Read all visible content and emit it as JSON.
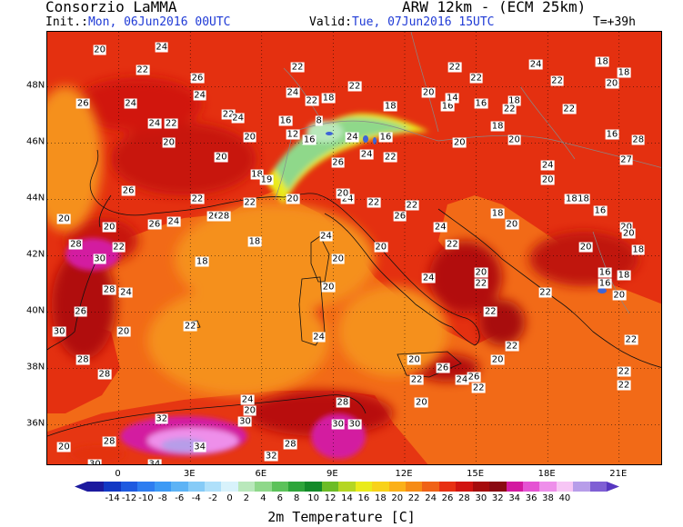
{
  "header": {
    "organization": "Consorzio LaMMA",
    "model": "ARW 12km - (ECM 25km)",
    "init_label": "Init.:",
    "init_value": "Mon, 06Jun2016 00UTC",
    "valid_label": "Valid:",
    "valid_value": "Tue, 07Jun2016 15UTC",
    "timestep": "T=+39h"
  },
  "map": {
    "latitude_labels": [
      "48N",
      "46N",
      "44N",
      "42N",
      "40N",
      "38N",
      "36N"
    ],
    "longitude_labels": [
      "0",
      "3E",
      "6E",
      "9E",
      "12E",
      "15E",
      "18E",
      "21E"
    ],
    "station_values": [
      {
        "v": "20",
        "lon": -0.8,
        "lat": 49.3
      },
      {
        "v": "24",
        "lon": 1.8,
        "lat": 49.4
      },
      {
        "v": "22",
        "lon": 1.0,
        "lat": 48.6
      },
      {
        "v": "26",
        "lon": 3.3,
        "lat": 48.3
      },
      {
        "v": "24",
        "lon": 3.4,
        "lat": 47.7
      },
      {
        "v": "26",
        "lon": -1.5,
        "lat": 47.4
      },
      {
        "v": "24",
        "lon": 0.5,
        "lat": 47.4
      },
      {
        "v": "22",
        "lon": 4.6,
        "lat": 47.0
      },
      {
        "v": "24",
        "lon": 5.0,
        "lat": 46.9
      },
      {
        "v": "24",
        "lon": 1.5,
        "lat": 46.7
      },
      {
        "v": "22",
        "lon": 2.2,
        "lat": 46.7
      },
      {
        "v": "20",
        "lon": 2.1,
        "lat": 46.0
      },
      {
        "v": "20",
        "lon": 5.5,
        "lat": 46.2
      },
      {
        "v": "20",
        "lon": 4.3,
        "lat": 45.5
      },
      {
        "v": "18",
        "lon": 5.8,
        "lat": 44.9
      },
      {
        "v": "19",
        "lon": 6.2,
        "lat": 44.7
      },
      {
        "v": "26",
        "lon": 0.4,
        "lat": 44.3
      },
      {
        "v": "22",
        "lon": 3.3,
        "lat": 44.0
      },
      {
        "v": "22",
        "lon": 5.5,
        "lat": 43.9
      },
      {
        "v": "20",
        "lon": 7.3,
        "lat": 44.0
      },
      {
        "v": "24",
        "lon": 9.6,
        "lat": 44.0
      },
      {
        "v": "20",
        "lon": -2.3,
        "lat": 43.3
      },
      {
        "v": "20",
        "lon": -0.4,
        "lat": 43.0
      },
      {
        "v": "26",
        "lon": 1.5,
        "lat": 43.1
      },
      {
        "v": "24",
        "lon": 2.3,
        "lat": 43.2
      },
      {
        "v": "26",
        "lon": 4.0,
        "lat": 43.4
      },
      {
        "v": "28",
        "lon": 4.4,
        "lat": 43.4
      },
      {
        "v": "18",
        "lon": 5.7,
        "lat": 42.5
      },
      {
        "v": "28",
        "lon": -1.8,
        "lat": 42.4
      },
      {
        "v": "22",
        "lon": 0.0,
        "lat": 42.3
      },
      {
        "v": "30",
        "lon": -0.8,
        "lat": 41.9
      },
      {
        "v": "18",
        "lon": 3.5,
        "lat": 41.8
      },
      {
        "v": "28",
        "lon": -0.4,
        "lat": 40.8
      },
      {
        "v": "24",
        "lon": 0.3,
        "lat": 40.7
      },
      {
        "v": "26",
        "lon": -1.6,
        "lat": 40.0
      },
      {
        "v": "22",
        "lon": 3.0,
        "lat": 39.5
      },
      {
        "v": "20",
        "lon": 0.2,
        "lat": 39.3
      },
      {
        "v": "30",
        "lon": -2.5,
        "lat": 39.3
      },
      {
        "v": "28",
        "lon": -1.5,
        "lat": 38.3
      },
      {
        "v": "28",
        "lon": -0.6,
        "lat": 37.8
      },
      {
        "v": "24",
        "lon": 5.4,
        "lat": 36.9
      },
      {
        "v": "20",
        "lon": 5.5,
        "lat": 36.5
      },
      {
        "v": "30",
        "lon": 5.3,
        "lat": 36.1
      },
      {
        "v": "32",
        "lon": 1.8,
        "lat": 36.2
      },
      {
        "v": "34",
        "lon": 3.4,
        "lat": 35.2
      },
      {
        "v": "28",
        "lon": -0.4,
        "lat": 35.4
      },
      {
        "v": "20",
        "lon": -2.3,
        "lat": 35.2
      },
      {
        "v": "30",
        "lon": -1.0,
        "lat": 34.6
      },
      {
        "v": "34",
        "lon": 1.5,
        "lat": 34.6
      },
      {
        "v": "32",
        "lon": 6.4,
        "lat": 34.9
      },
      {
        "v": "28",
        "lon": 7.2,
        "lat": 35.3
      },
      {
        "v": "30",
        "lon": 9.2,
        "lat": 36.0
      },
      {
        "v": "30",
        "lon": 9.9,
        "lat": 36.0
      },
      {
        "v": "28",
        "lon": 9.4,
        "lat": 36.8
      },
      {
        "v": "22",
        "lon": 7.5,
        "lat": 48.7
      },
      {
        "v": "22",
        "lon": 9.9,
        "lat": 48.0
      },
      {
        "v": "24",
        "lon": 7.3,
        "lat": 47.8
      },
      {
        "v": "22",
        "lon": 8.1,
        "lat": 47.5
      },
      {
        "v": "18",
        "lon": 8.8,
        "lat": 47.6
      },
      {
        "v": "16",
        "lon": 7.0,
        "lat": 46.8
      },
      {
        "v": "12",
        "lon": 7.3,
        "lat": 46.3
      },
      {
        "v": "16",
        "lon": 8.0,
        "lat": 46.1
      },
      {
        "v": "8",
        "lon": 8.4,
        "lat": 46.8
      },
      {
        "v": "24",
        "lon": 9.8,
        "lat": 46.2
      },
      {
        "v": "26",
        "lon": 9.2,
        "lat": 45.3
      },
      {
        "v": "24",
        "lon": 10.4,
        "lat": 45.6
      },
      {
        "v": "18",
        "lon": 11.4,
        "lat": 47.3
      },
      {
        "v": "16",
        "lon": 11.2,
        "lat": 46.2
      },
      {
        "v": "22",
        "lon": 11.4,
        "lat": 45.5
      },
      {
        "v": "20",
        "lon": 9.4,
        "lat": 44.2
      },
      {
        "v": "22",
        "lon": 10.7,
        "lat": 43.9
      },
      {
        "v": "24",
        "lon": 8.7,
        "lat": 42.7
      },
      {
        "v": "26",
        "lon": 11.8,
        "lat": 43.4
      },
      {
        "v": "20",
        "lon": 11.0,
        "lat": 42.3
      },
      {
        "v": "20",
        "lon": 9.2,
        "lat": 41.9
      },
      {
        "v": "20",
        "lon": 8.8,
        "lat": 40.9
      },
      {
        "v": "24",
        "lon": 8.4,
        "lat": 39.1
      },
      {
        "v": "22",
        "lon": 12.3,
        "lat": 43.8
      },
      {
        "v": "24",
        "lon": 13.5,
        "lat": 43.0
      },
      {
        "v": "22",
        "lon": 14.0,
        "lat": 42.4
      },
      {
        "v": "24",
        "lon": 13.0,
        "lat": 41.2
      },
      {
        "v": "22",
        "lon": 14.1,
        "lat": 48.7
      },
      {
        "v": "20",
        "lon": 13.0,
        "lat": 47.8
      },
      {
        "v": "16",
        "lon": 13.8,
        "lat": 47.3
      },
      {
        "v": "14",
        "lon": 14.0,
        "lat": 47.6
      },
      {
        "v": "20",
        "lon": 14.3,
        "lat": 46.0
      },
      {
        "v": "22",
        "lon": 15.0,
        "lat": 48.3
      },
      {
        "v": "16",
        "lon": 15.2,
        "lat": 47.4
      },
      {
        "v": "18",
        "lon": 16.6,
        "lat": 47.5
      },
      {
        "v": "22",
        "lon": 16.4,
        "lat": 47.2
      },
      {
        "v": "18",
        "lon": 15.9,
        "lat": 46.6
      },
      {
        "v": "20",
        "lon": 16.6,
        "lat": 46.1
      },
      {
        "v": "24",
        "lon": 17.5,
        "lat": 48.8
      },
      {
        "v": "22",
        "lon": 18.4,
        "lat": 48.2
      },
      {
        "v": "22",
        "lon": 18.9,
        "lat": 47.2
      },
      {
        "v": "20",
        "lon": 20.7,
        "lat": 48.1
      },
      {
        "v": "18",
        "lon": 20.3,
        "lat": 48.9
      },
      {
        "v": "18",
        "lon": 21.2,
        "lat": 48.5
      },
      {
        "v": "16",
        "lon": 20.7,
        "lat": 46.3
      },
      {
        "v": "27",
        "lon": 21.3,
        "lat": 45.4
      },
      {
        "v": "28",
        "lon": 21.8,
        "lat": 46.1
      },
      {
        "v": "24",
        "lon": 18.0,
        "lat": 45.2
      },
      {
        "v": "20",
        "lon": 18.0,
        "lat": 44.7
      },
      {
        "v": "18",
        "lon": 19.0,
        "lat": 44.0
      },
      {
        "v": "18",
        "lon": 19.5,
        "lat": 44.0
      },
      {
        "v": "18",
        "lon": 15.9,
        "lat": 43.5
      },
      {
        "v": "16",
        "lon": 20.2,
        "lat": 43.6
      },
      {
        "v": "20",
        "lon": 21.3,
        "lat": 43.0
      },
      {
        "v": "20",
        "lon": 21.4,
        "lat": 42.8
      },
      {
        "v": "18",
        "lon": 21.8,
        "lat": 42.2
      },
      {
        "v": "20",
        "lon": 19.6,
        "lat": 42.3
      },
      {
        "v": "20",
        "lon": 16.5,
        "lat": 43.1
      },
      {
        "v": "16",
        "lon": 20.4,
        "lat": 41.4
      },
      {
        "v": "16",
        "lon": 20.4,
        "lat": 41.0
      },
      {
        "v": "18",
        "lon": 21.2,
        "lat": 41.3
      },
      {
        "v": "20",
        "lon": 21.0,
        "lat": 40.6
      },
      {
        "v": "22",
        "lon": 17.9,
        "lat": 40.7
      },
      {
        "v": "20",
        "lon": 15.2,
        "lat": 41.4
      },
      {
        "v": "22",
        "lon": 15.2,
        "lat": 41.0
      },
      {
        "v": "22",
        "lon": 15.6,
        "lat": 40.0
      },
      {
        "v": "22",
        "lon": 16.5,
        "lat": 38.8
      },
      {
        "v": "20",
        "lon": 15.9,
        "lat": 38.3
      },
      {
        "v": "22",
        "lon": 21.5,
        "lat": 39.0
      },
      {
        "v": "22",
        "lon": 21.2,
        "lat": 37.9
      },
      {
        "v": "22",
        "lon": 21.2,
        "lat": 37.4
      },
      {
        "v": "20",
        "lon": 12.4,
        "lat": 38.3
      },
      {
        "v": "26",
        "lon": 13.6,
        "lat": 38.0
      },
      {
        "v": "22",
        "lon": 12.5,
        "lat": 37.6
      },
      {
        "v": "24",
        "lon": 14.4,
        "lat": 37.6
      },
      {
        "v": "26",
        "lon": 14.9,
        "lat": 37.7
      },
      {
        "v": "22",
        "lon": 15.1,
        "lat": 37.3
      },
      {
        "v": "20",
        "lon": 12.7,
        "lat": 36.8
      }
    ]
  },
  "colorbar": {
    "title": "2m Temperature [C]",
    "tick_labels": [
      "-14",
      "-12",
      "-10",
      "-8",
      "-6",
      "-4",
      "-2",
      "0",
      "2",
      "4",
      "6",
      "8",
      "10",
      "12",
      "14",
      "16",
      "18",
      "20",
      "22",
      "24",
      "26",
      "28",
      "30",
      "32",
      "34",
      "36",
      "38",
      "40"
    ],
    "colors": [
      "#1c1a9e",
      "#1238c4",
      "#1e5ae0",
      "#2e7df0",
      "#3d9af5",
      "#5db3f5",
      "#86cbf7",
      "#afe0fa",
      "#d8f2fb",
      "#b9e8bb",
      "#8fd88a",
      "#5cc25a",
      "#2ea53a",
      "#138a29",
      "#6cbc26",
      "#b5d623",
      "#eaeb1b",
      "#f8d21a",
      "#fbb018",
      "#f68b15",
      "#f06216",
      "#e83012",
      "#d11410",
      "#a50c0c",
      "#8a0a12",
      "#d31aa0",
      "#e553d3",
      "#ee8fea",
      "#f7c6f5",
      "#b79de9",
      "#7f5fd4"
    ],
    "left_arrow_color": "#1c1a9e",
    "right_arrow_color": "#5636c0"
  }
}
